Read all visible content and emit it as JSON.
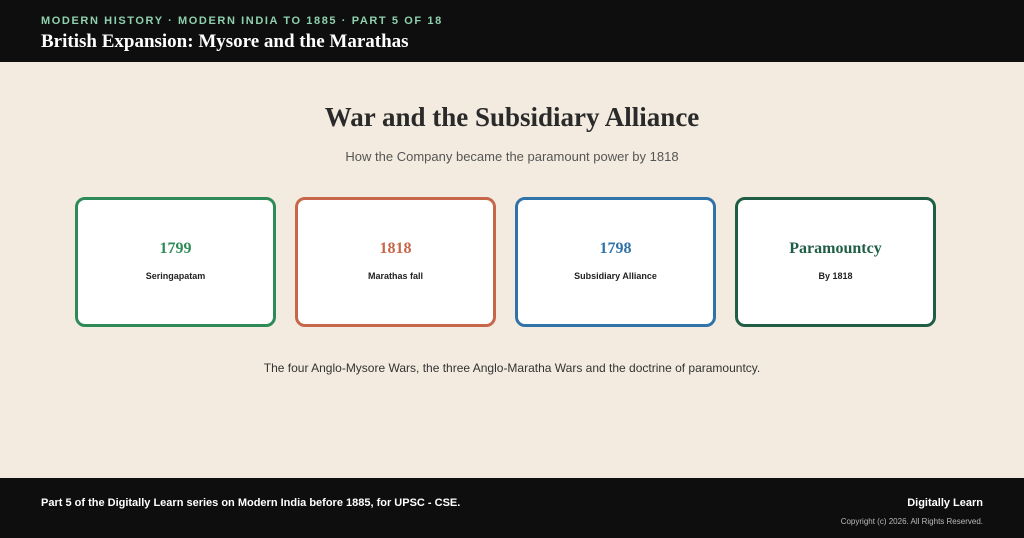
{
  "header": {
    "eyebrow": "MODERN HISTORY · MODERN INDIA TO 1885 · PART 5 OF 18",
    "title": "British Expansion: Mysore and the Marathas"
  },
  "main": {
    "heading": "War and the Subsidiary Alliance",
    "subheading": "How the Company became the paramount power by 1818",
    "cards": [
      {
        "value": "1799",
        "label": "Seringapatam",
        "color": "#2e8b57"
      },
      {
        "value": "1818",
        "label": "Marathas fall",
        "color": "#c7674a"
      },
      {
        "value": "1798",
        "label": "Subsidiary Alliance",
        "color": "#2f73a8"
      },
      {
        "value": "Paramountcy",
        "label": "By 1818",
        "color": "#1f5e45"
      }
    ],
    "caption": "The four Anglo-Mysore Wars, the three Anglo-Maratha Wars and the doctrine of paramountcy."
  },
  "footer": {
    "note": "Part 5 of the Digitally Learn series on Modern India before 1885, for UPSC - CSE.",
    "brand": "Digitally Learn",
    "copyright": "Copyright (c) 2026. All Rights Reserved."
  }
}
